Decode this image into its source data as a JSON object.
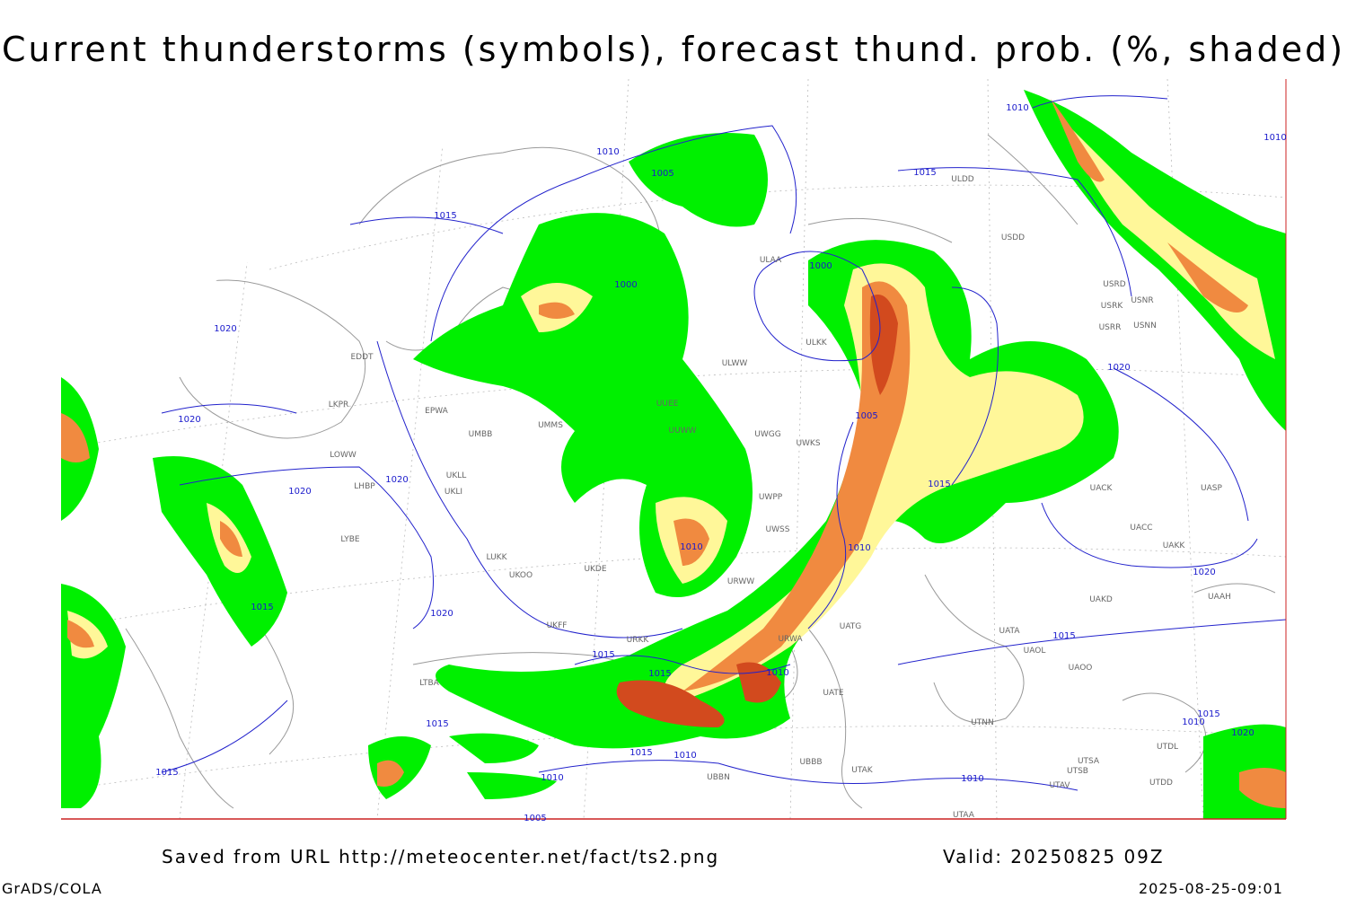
{
  "title": "Current thunderstorms (symbols), forecast thund. prob. (%, shaded)",
  "footer": {
    "source": "Saved from URL http://meteocenter.net/fact/ts2.png",
    "valid": "Valid: 20250825 09Z",
    "software": "GrADS/COLA",
    "timestamp": "2025-08-25-09:01"
  },
  "isobar_labels": [
    "1010",
    "1010",
    "1005",
    "1015",
    "1015",
    "1000",
    "1000",
    "1020",
    "1020",
    "1020",
    "1005",
    "1020",
    "1020",
    "1015",
    "1010",
    "1010",
    "1015",
    "1020",
    "1020",
    "1015",
    "1015",
    "1015",
    "1010",
    "1015",
    "1015",
    "1010",
    "1020",
    "1015",
    "1015",
    "1010",
    "1010",
    "1010",
    "1005",
    "1010"
  ],
  "stations": [
    "ULDD",
    "USDD",
    "ULAA",
    "ULKK",
    "ULWW",
    "EDDT",
    "EPWA",
    "LKPR",
    "UMMS",
    "UMBB",
    "UUWW",
    "UUEE",
    "UWGG",
    "UWKS",
    "LOWW",
    "LHBP",
    "UKLL",
    "UKLI",
    "UWPP",
    "LYBE",
    "LUKK",
    "UKOO",
    "UKDE",
    "UWSS",
    "URWW",
    "URWA",
    "UATG",
    "UATE",
    "USRD",
    "USRK",
    "USNR",
    "USRR",
    "USNN",
    "UACK",
    "UASP",
    "UACC",
    "UAKK",
    "UAKD",
    "UAAH",
    "UATA",
    "UAOL",
    "UAOO",
    "UTNN",
    "UTSA",
    "UTSB",
    "UTAV",
    "UTAA",
    "UBBB",
    "UTAK",
    "UBBN",
    "LTBA",
    "UKFF",
    "URKK",
    "UTDD",
    "UTDL"
  ]
}
